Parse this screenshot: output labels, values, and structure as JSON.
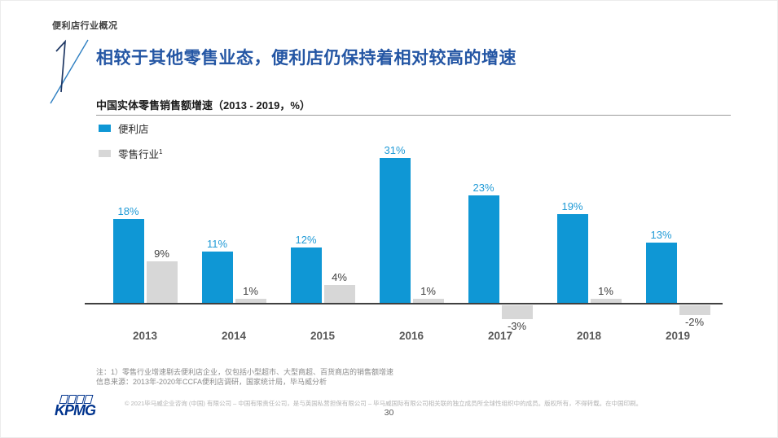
{
  "header": {
    "eyebrow": "便利店行业概况",
    "section_number": "1",
    "title": "相较于其他零售业态，便利店仍保持着相对较高的增速"
  },
  "chart": {
    "title": "中国实体零售销售额增速（2013 - 2019，%）",
    "legend_items": [
      {
        "label": "便利店",
        "sup": "",
        "color": "#0f97d5"
      },
      {
        "label": "零售行业",
        "sup": "1",
        "color": "#d7d7d7"
      }
    ]
  },
  "chart_data": {
    "type": "bar",
    "title": "中国实体零售销售额增速（2013 - 2019，%）",
    "categories": [
      "2013",
      "2014",
      "2015",
      "2016",
      "2017",
      "2018",
      "2019"
    ],
    "series": [
      {
        "name": "便利店",
        "key": "convenience-store",
        "color": "#0f97d5",
        "label_color": "#1f9ad6",
        "values": [
          18,
          11,
          12,
          31,
          23,
          19,
          13
        ]
      },
      {
        "name": "零售行业",
        "key": "retail-industry",
        "color": "#d7d7d7",
        "label_color": "#3f3f3f",
        "values": [
          9,
          1,
          4,
          1,
          -3,
          1,
          -2
        ]
      }
    ],
    "value_suffix": "%",
    "ylim": [
      -5,
      33
    ],
    "grid": false,
    "legend_position": "top-left",
    "data_labels": true
  },
  "notes": {
    "note1": "注：1）零售行业增速剔去便利店企业，仅包括小型超市、大型商超、百货商店的销售额增速",
    "source": "信息来源：2013年-2020年CCFA便利店调研，国家统计局，毕马威分析"
  },
  "footer": {
    "logo_text": "KPMG",
    "copyright": "© 2021毕马威企业咨询 (中国) 有限公司 – 中国有限责任公司，是与英国私营担保有限公司 – 毕马威国际有限公司相关联的独立成员所全球性组织中的成员。版权所有，不得转载。在中国印刷。",
    "page_number": "30"
  },
  "colors": {
    "title_blue": "#2456a4",
    "bar_blue": "#0f97d5",
    "bar_gray": "#d7d7d7",
    "kpmg_navy": "#00338D",
    "axis": "#404040"
  }
}
